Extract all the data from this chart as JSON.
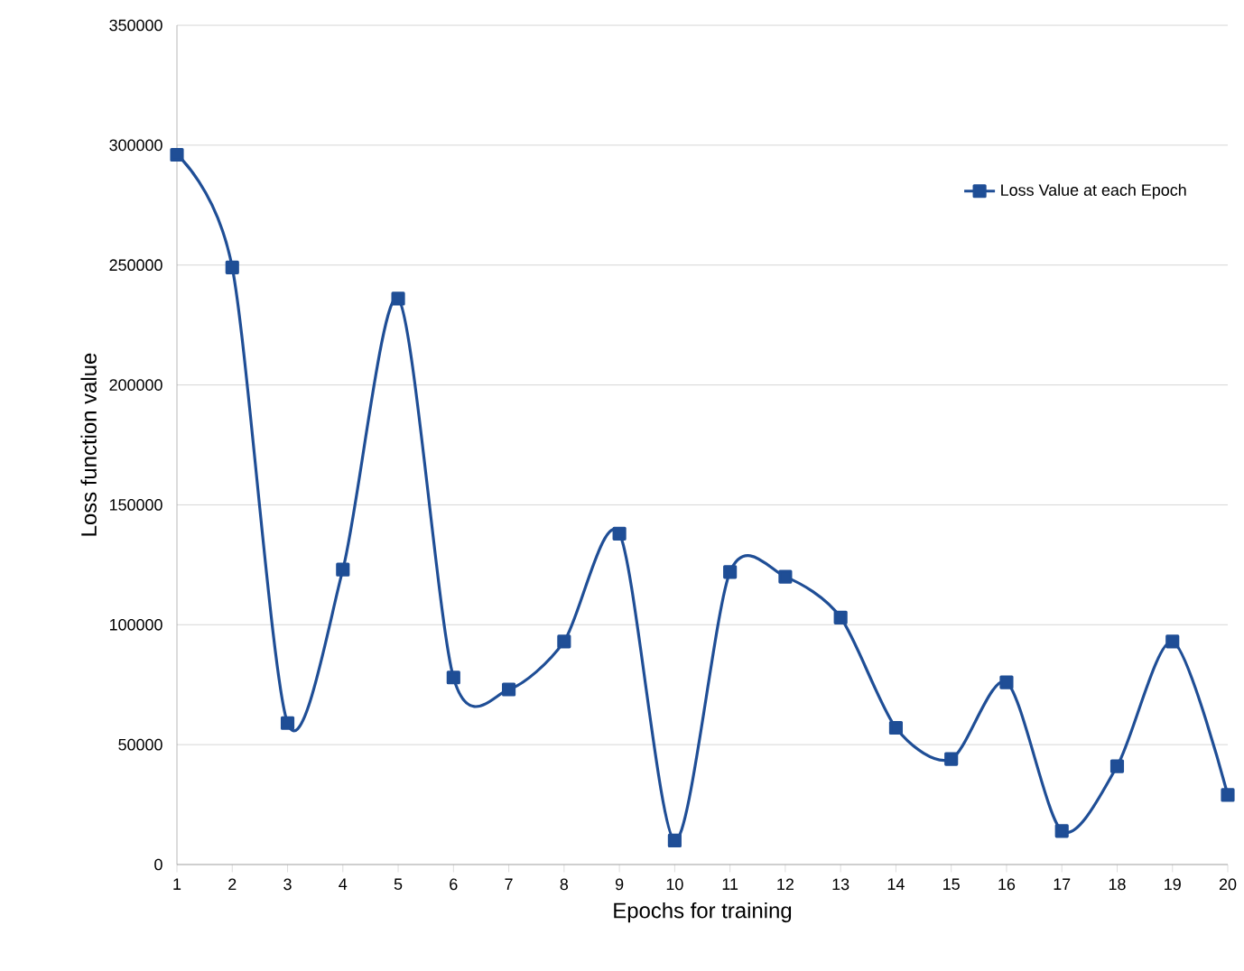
{
  "chart_data": {
    "type": "line",
    "xlabel": "Epochs for training",
    "ylabel": "Loss function value",
    "x": [
      1,
      2,
      3,
      4,
      5,
      6,
      7,
      8,
      9,
      10,
      11,
      12,
      13,
      14,
      15,
      16,
      17,
      18,
      19,
      20
    ],
    "series": [
      {
        "name": "Loss Value at each Epoch",
        "color": "#1f4e96",
        "values": [
          296000,
          249000,
          59000,
          123000,
          236000,
          78000,
          73000,
          93000,
          138000,
          10000,
          122000,
          120000,
          103000,
          57000,
          44000,
          76000,
          14000,
          41000,
          93000,
          29000
        ]
      }
    ],
    "xlim": [
      1,
      20
    ],
    "xticks": [
      1,
      2,
      3,
      4,
      5,
      6,
      7,
      8,
      9,
      10,
      11,
      12,
      13,
      14,
      15,
      16,
      17,
      18,
      19,
      20
    ],
    "ylim": [
      0,
      350000
    ],
    "yticks": [
      0,
      50000,
      100000,
      150000,
      200000,
      250000,
      300000,
      350000
    ],
    "grid": "y",
    "legend": "top right",
    "marker": "square",
    "line_style": "solid"
  }
}
